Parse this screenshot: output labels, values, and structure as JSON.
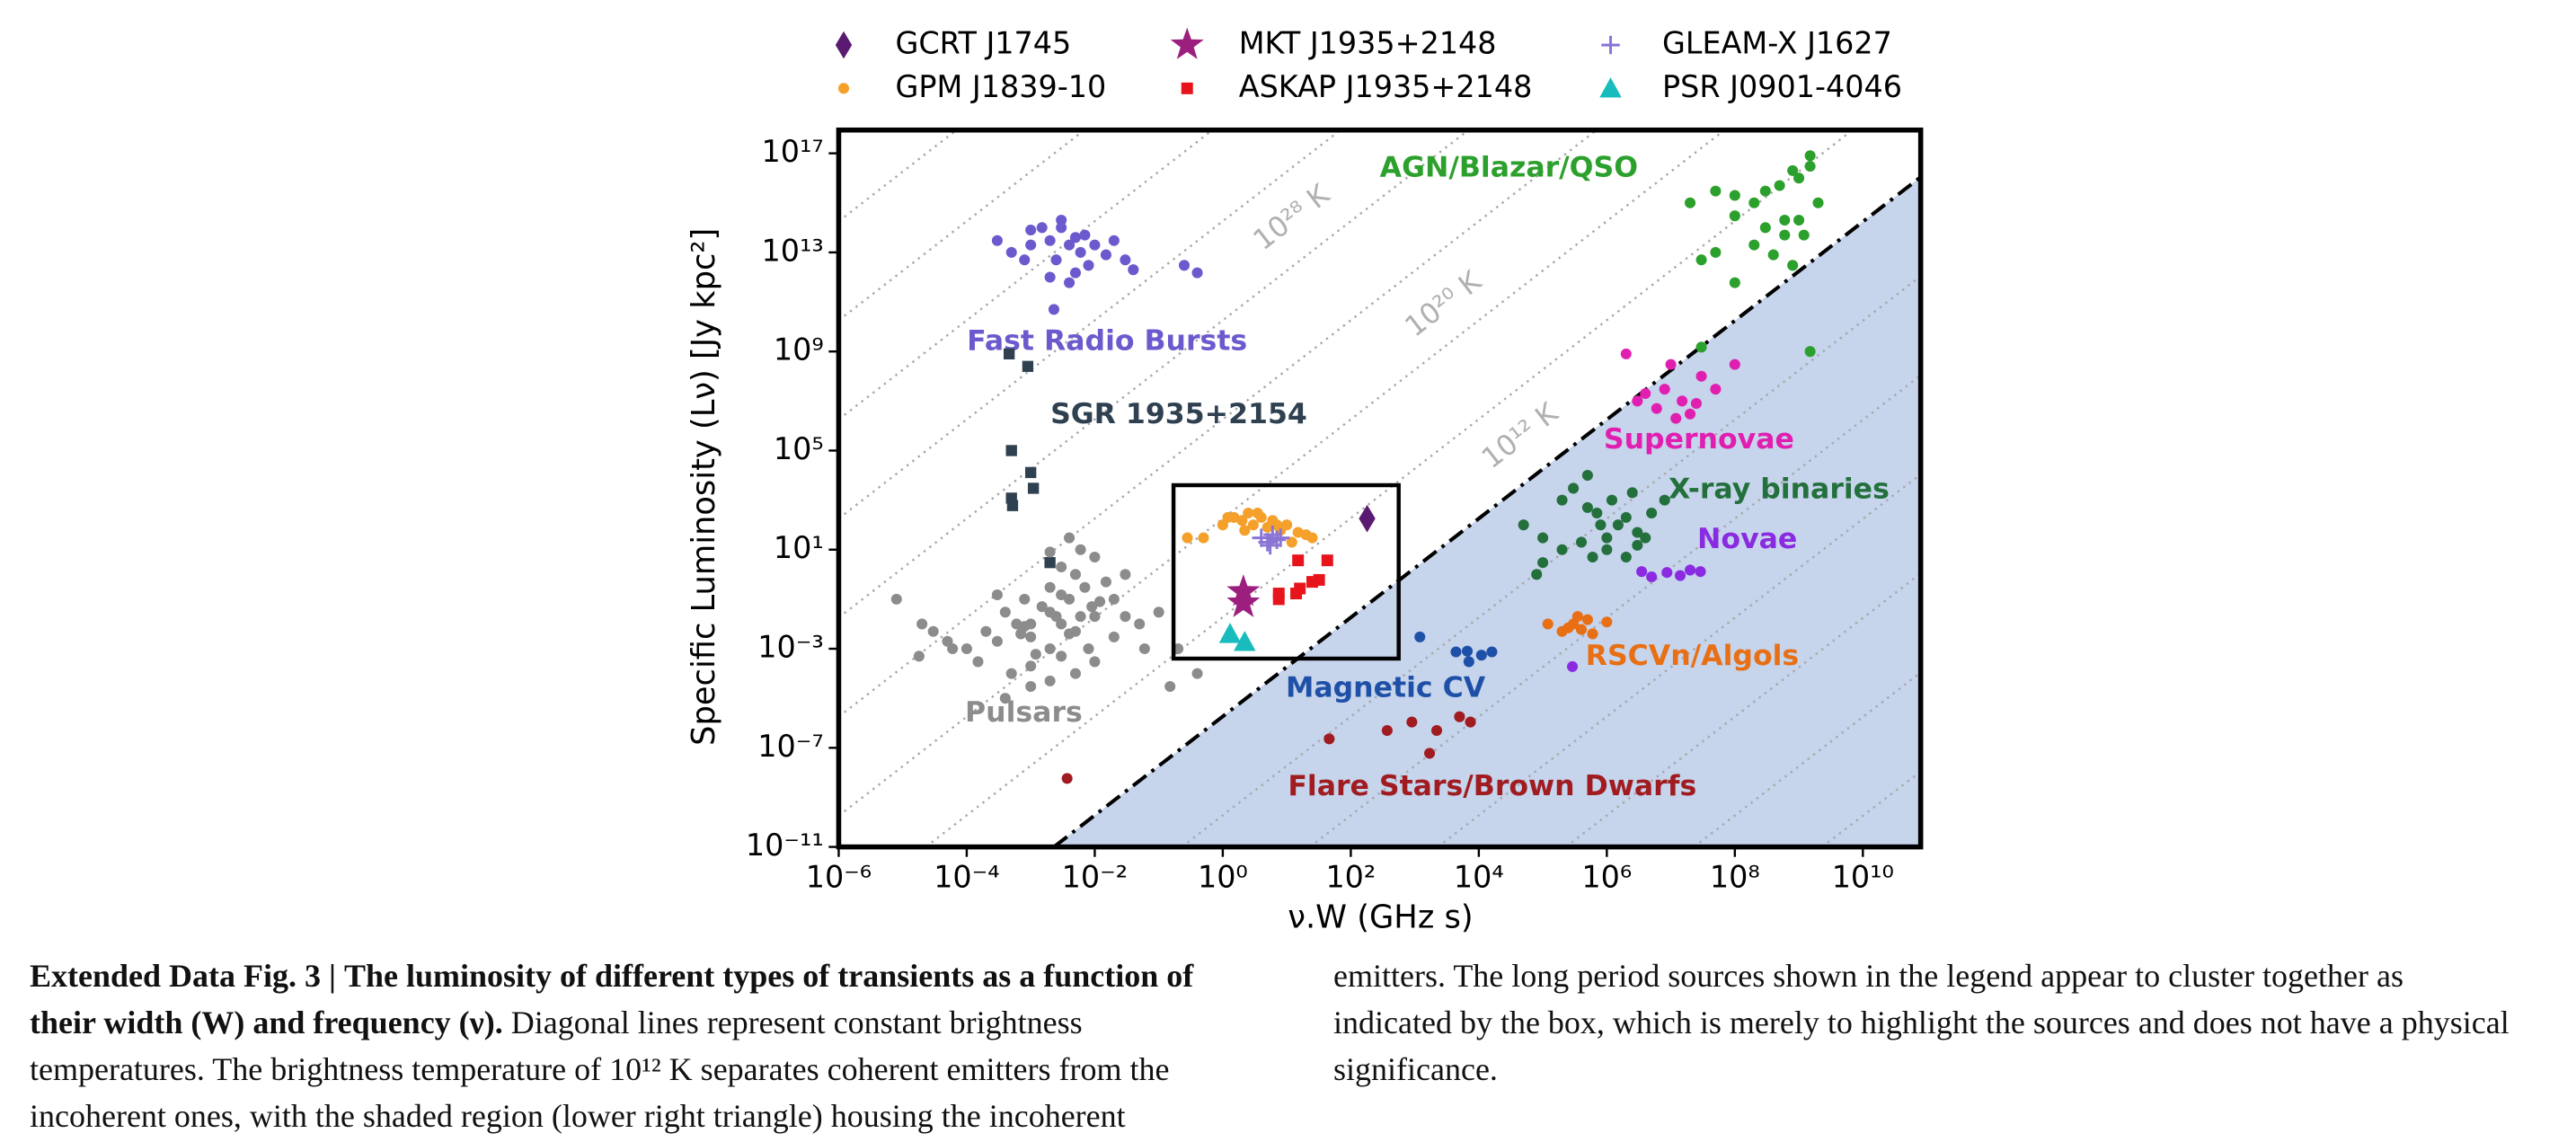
{
  "chart_data": {
    "type": "scatter",
    "xscale": "log",
    "yscale": "log",
    "xlim": [
      1e-06,
      80000000000.0
    ],
    "ylim": [
      1e-11,
      8.7e+17
    ],
    "xticks": [
      {
        "value": 1e-06,
        "label": "10⁻⁶"
      },
      {
        "value": 0.0001,
        "label": "10⁻⁴"
      },
      {
        "value": 0.01,
        "label": "10⁻²"
      },
      {
        "value": 1,
        "label": "10⁰"
      },
      {
        "value": 100,
        "label": "10²"
      },
      {
        "value": 10000.0,
        "label": "10⁴"
      },
      {
        "value": 1000000.0,
        "label": "10⁶"
      },
      {
        "value": 100000000.0,
        "label": "10⁸"
      },
      {
        "value": 10000000000.0,
        "label": "10¹⁰"
      }
    ],
    "yticks": [
      {
        "value": 1e-11,
        "label": "10⁻¹¹"
      },
      {
        "value": 1e-07,
        "label": "10⁻⁷"
      },
      {
        "value": 0.001,
        "label": "10⁻³"
      },
      {
        "value": 10,
        "label": "10¹"
      },
      {
        "value": 100000.0,
        "label": "10⁵"
      },
      {
        "value": 1000000000.0,
        "label": "10⁹"
      },
      {
        "value": 10000000000000.0,
        "label": "10¹³"
      },
      {
        "value": 1e+17,
        "label": "10¹⁷"
      }
    ],
    "x_label": "ν.W (GHz s)",
    "y_label": "Specific Luminosity (Lν) [Jy kpc²]",
    "grid": false,
    "legend_position": "top",
    "series": [
      {
        "name": "GCRT J1745",
        "color": "#5b1a72",
        "marker": "diamond",
        "x": [
          180
        ],
        "y": [
          180
        ]
      },
      {
        "name": "GPM J1839-10",
        "color": "#f5a02a",
        "marker": "circle",
        "x": [
          0.28,
          0.5,
          1,
          1.5,
          2,
          2.5,
          3,
          4,
          5,
          6,
          8,
          10,
          15,
          20,
          25,
          1.2,
          2.2,
          3.5,
          7,
          12
        ],
        "y": [
          30,
          30,
          100,
          200,
          150,
          300,
          100,
          200,
          80,
          150,
          60,
          100,
          50,
          40,
          30,
          200,
          60,
          300,
          100,
          20
        ]
      },
      {
        "name": "MKT J1935+2148",
        "color": "#9c1f7e",
        "marker": "star",
        "x": [
          2.1,
          2.1
        ],
        "y": [
          0.2,
          0.07
        ]
      },
      {
        "name": "ASKAP J1935+2148",
        "color": "#e8141b",
        "marker": "square",
        "x": [
          15,
          43,
          32,
          16,
          14,
          7.5,
          7.5,
          25
        ],
        "y": [
          3.7,
          3.7,
          0.6,
          0.27,
          0.17,
          0.17,
          0.1,
          0.5
        ]
      },
      {
        "name": "GLEAM-X J1627",
        "color": "#8a74d6",
        "marker": "plus",
        "x": [
          4,
          5,
          6,
          7,
          5.5,
          8
        ],
        "y": [
          30,
          20,
          40,
          25,
          15,
          30
        ]
      },
      {
        "name": "PSR J0901-4046",
        "color": "#19bcbc",
        "marker": "triangle",
        "x": [
          1.3,
          2.2
        ],
        "y": [
          0.004,
          0.0019
        ]
      }
    ],
    "populations": [
      {
        "name": "Fast Radio Bursts",
        "color": "#6a5acd",
        "marker": "circle",
        "x": [
          0.0003,
          0.0005,
          0.0008,
          0.001,
          0.0015,
          0.002,
          0.0025,
          0.003,
          0.004,
          0.005,
          0.006,
          0.008,
          0.01,
          0.015,
          0.02,
          0.03,
          0.04,
          0.002,
          0.003,
          0.005,
          0.007,
          0.001,
          0.004,
          0.0023,
          0.25,
          0.4
        ],
        "y": [
          30000000000000.0,
          10000000000000.0,
          5000000000000.0,
          20000000000000.0,
          100000000000000.0,
          30000000000000.0,
          5000000000000.0,
          100000000000000.0,
          20000000000000.0,
          40000000000000.0,
          10000000000000.0,
          3000000000000.0,
          20000000000000.0,
          8000000000000.0,
          30000000000000.0,
          5000000000000.0,
          2000000000000.0,
          1000000000000.0,
          200000000000000.0,
          1500000000000.0,
          50000000000000.0,
          80000000000000.0,
          600000000000.0,
          50000000000.0,
          3000000000000.0,
          1500000000000.0
        ]
      },
      {
        "name": "SGR 1935+2154",
        "color": "#2f4050",
        "marker": "square",
        "x": [
          0.00046,
          0.0009,
          0.0005,
          0.001,
          0.0011,
          0.0005,
          0.00052,
          0.002
        ],
        "y": [
          800000000.0,
          250000000.0,
          100000.0,
          13000.0,
          3000.0,
          1200.0,
          600,
          3
        ]
      },
      {
        "name": "Pulsars",
        "color": "#8c8c8c",
        "marker": "circle",
        "x": [
          0.001,
          0.002,
          0.003,
          0.005,
          0.01,
          0.02,
          0.004,
          0.002,
          0.001,
          0.0006,
          0.0003,
          0.0002,
          0.0001,
          5e-05,
          8e-06,
          3e-05,
          0.0005,
          0.001,
          0.003,
          0.008,
          0.02,
          0.05,
          0.1,
          0.03,
          0.01,
          0.005,
          0.002,
          0.0008,
          0.0004,
          0.0015,
          0.007,
          0.012,
          0.003,
          0.002,
          0.006,
          0.004,
          0.015,
          0.03,
          0.06,
          0.01,
          0.005,
          0.002,
          0.001,
          0.0004,
          0.00015,
          6e-05,
          2e-05,
          1.8e-05,
          0.0025,
          0.004,
          0.006,
          0.0008,
          0.0012,
          0.003,
          0.009,
          0.2,
          0.4,
          0.15,
          0.0003,
          0.0007
        ],
        "y": [
          0.01,
          0.03,
          0.01,
          0.005,
          0.02,
          0.1,
          0.1,
          0.001,
          0.003,
          0.01,
          0.002,
          0.005,
          0.001,
          0.002,
          0.1,
          0.005,
          0.0001,
          0.0002,
          0.0005,
          0.001,
          0.003,
          0.01,
          0.03,
          1,
          5,
          1,
          0.3,
          0.1,
          0.03,
          0.05,
          0.3,
          0.08,
          2,
          8,
          10,
          30,
          0.5,
          0.02,
          0.001,
          0.0003,
          0.0001,
          5e-05,
          3e-05,
          1e-05,
          0.0003,
          0.001,
          0.01,
          0.0005,
          0.02,
          0.004,
          0.02,
          0.008,
          0.0006,
          0.15,
          0.05,
          0.001,
          0.0001,
          3e-05,
          0.15,
          0.004
        ]
      },
      {
        "name": "AGN/Blazar/QSO",
        "color": "#2ca02c",
        "marker": "circle",
        "x": [
          20000000.0,
          50000000.0,
          100000000.0,
          200000000.0,
          300000000.0,
          500000000.0,
          800000000.0,
          1000000000.0,
          1500000000.0,
          2000000000.0,
          50000000.0,
          100000000.0,
          300000000.0,
          600000000.0,
          1000000000.0,
          200000000.0,
          400000000.0,
          800000000.0,
          1200000000.0,
          30000000.0,
          600000000.0,
          100000000.0,
          1500000000.0,
          30000000.0,
          1500000000.0
        ],
        "y": [
          1000000000000000.0,
          3000000000000000.0,
          2000000000000000.0,
          1000000000000000.0,
          3000000000000000.0,
          5000000000000000.0,
          2e+16,
          1e+16,
          3e+16,
          1000000000000000.0,
          10000000000000.0,
          300000000000000.0,
          100000000000000.0,
          50000000000000.0,
          200000000000000.0,
          20000000000000.0,
          8000000000000.0,
          3000000000000.0,
          50000000000000.0,
          5000000000000.0,
          200000000000000.0,
          600000000000.0,
          1000000000.0,
          1500000000.0,
          8e+16
        ]
      },
      {
        "name": "Supernovae",
        "color": "#e01fb0",
        "marker": "circle",
        "x": [
          2000000.0,
          4000000.0,
          6000000.0,
          10000000.0,
          15000000.0,
          20000000.0,
          30000000.0,
          50000000.0,
          3000000.0,
          8000000.0,
          12000000.0,
          25000000.0,
          100000000.0
        ],
        "y": [
          800000000.0,
          20000000.0,
          5000000.0,
          300000000.0,
          10000000.0,
          3000000.0,
          100000000.0,
          30000000.0,
          10000000.0,
          30000000.0,
          2000000.0,
          8000000.0,
          300000000.0
        ]
      },
      {
        "name": "X-ray binaries",
        "color": "#23703c",
        "marker": "circle",
        "x": [
          50000.0,
          100000.0,
          200000.0,
          300000.0,
          500000.0,
          800000.0,
          1000000.0,
          1500000.0,
          2000000.0,
          3000000.0,
          5000000.0,
          8000000.0,
          100000.0,
          200000.0,
          400000.0,
          600000.0,
          1000000.0,
          2000000.0,
          3000000.0,
          500000.0,
          700000.0,
          1200000.0,
          2500000.0,
          4000000.0,
          80000.0
        ],
        "y": [
          100,
          30,
          1000,
          3000,
          500,
          100,
          30,
          100,
          200,
          50,
          300,
          1000,
          3,
          10,
          20,
          5,
          10,
          5,
          15,
          10000.0,
          300,
          1000,
          2000,
          30,
          1
        ]
      },
      {
        "name": "Novae",
        "color": "#8a2be2",
        "marker": "circle",
        "x": [
          3500000.0,
          5000000.0,
          8700000.0,
          14000000.0,
          20000000.0,
          29000000.0,
          290000.0
        ],
        "y": [
          1.3,
          0.8,
          1.2,
          0.9,
          1.5,
          1.3,
          0.00019
        ]
      },
      {
        "name": "RSCVn/Algols",
        "color": "#e86f14",
        "marker": "circle",
        "x": [
          120000.0,
          200000.0,
          300000.0,
          400000.0,
          500000.0,
          600000.0,
          1000000.0,
          350000.0,
          250000.0
        ],
        "y": [
          0.01,
          0.005,
          0.01,
          0.006,
          0.015,
          0.004,
          0.012,
          0.02,
          0.007
        ]
      },
      {
        "name": "Magnetic CV",
        "color": "#1f50a8",
        "marker": "circle",
        "x": [
          1200,
          4400,
          6600,
          11000.0,
          16000.0,
          7000
        ],
        "y": [
          0.003,
          0.00075,
          0.0008,
          0.00055,
          0.00075,
          0.0003
        ]
      },
      {
        "name": "Flare Stars/Brown Dwarfs",
        "color": "#a01c20",
        "marker": "circle",
        "x": [
          0.0037,
          46,
          370,
          900,
          2200,
          1700,
          5000,
          7400
        ],
        "y": [
          5.8e-09,
          2.3e-07,
          5e-07,
          1.1e-06,
          5e-07,
          6e-08,
          1.8e-06,
          1.1e-06
        ]
      }
    ],
    "temperature_lines": [
      {
        "x": [
          1e-06,
          6.9e-05
        ],
        "y": [
          180000000000000.0,
          8.7e+17
        ]
      },
      {
        "x": [
          1e-06,
          0.0069
        ],
        "y": [
          18000000000.0,
          8.7e+17
        ]
      },
      {
        "x": [
          1e-06,
          0.69
        ],
        "y": [
          1800000.0,
          8.7e+17
        ]
      },
      {
        "x": [
          1e-06,
          69
        ],
        "y": [
          180,
          8.7e+17
        ]
      },
      {
        "x": [
          1e-06,
          6900
        ],
        "y": [
          0.018,
          8.7e+17
        ]
      },
      {
        "x": [
          1e-06,
          690000.0
        ],
        "y": [
          1.8e-06,
          8.7e+17
        ]
      },
      {
        "x": [
          1e-06,
          69000000.0
        ],
        "y": [
          1.8e-10,
          8.7e+17
        ]
      },
      {
        "x": [
          2.3e-05,
          6900000000.0
        ],
        "y": [
          1e-11,
          8.7e+17
        ]
      },
      {
        "x": [
          0.23,
          80000000000.0
        ],
        "y": [
          1e-11,
          1100000000000.0
        ]
      },
      {
        "x": [
          23,
          80000000000.0
        ],
        "y": [
          1e-11,
          110000000.0
        ]
      },
      {
        "x": [
          2300,
          80000000000.0
        ],
        "y": [
          1e-11,
          11000.0
        ]
      },
      {
        "x": [
          230000.0,
          80000000000.0
        ],
        "y": [
          1e-11,
          1.1
        ]
      },
      {
        "x": [
          23000000.0,
          80000000000.0
        ],
        "y": [
          1e-11,
          0.00011
        ]
      },
      {
        "x": [
          2300000000.0,
          80000000000.0
        ],
        "y": [
          1e-11,
          1.1e-08
        ]
      }
    ],
    "coherence_line": {
      "x": [
        0.0023,
        80000000000.0
      ],
      "y": [
        1e-11,
        1.1e+16
      ]
    },
    "temperature_labels": [
      "10²⁸ K",
      "10²⁰ K",
      "10¹² K"
    ],
    "highlight_box": {
      "x": [
        0.17,
        560
      ],
      "y": [
        0.0004,
        4000
      ]
    }
  },
  "caption": {
    "label": "Extended Data Fig. 3 |",
    "title": "The luminosity of different types of transients as a function of their width (W) and frequency (ν).",
    "text": "Diagonal lines represent constant brightness temperatures. The brightness temperature of 10¹² K separates coherent emitters from the incoherent ones, with the shaded region (lower right triangle) housing the incoherent emitters. The long period sources shown in the legend appear to cluster together as indicated by the box, which is merely to highlight the sources and does not have a physical significance."
  }
}
